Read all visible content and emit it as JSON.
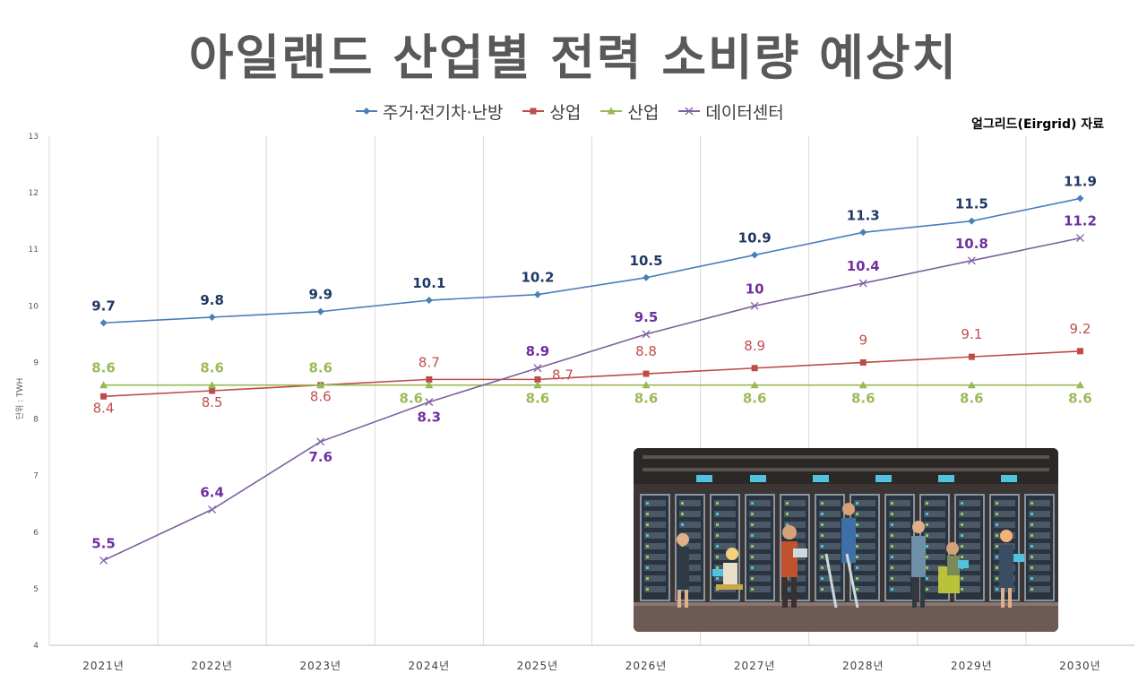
{
  "header": {
    "title": "아일랜드 산업별 전력 소비량 예상치",
    "source_note": "얼그리드(Eirgrid) 자료"
  },
  "chart_data": {
    "type": "line",
    "title": "아일랜드 산업별 전력 소비량 예상치",
    "ylabel": "단위 : TWH",
    "xlabel": "",
    "ylim": [
      4,
      13
    ],
    "y_ticks": [
      "4",
      "5",
      "6",
      "7",
      "8",
      "9",
      "10",
      "11",
      "12",
      "13"
    ],
    "categories": [
      "2021년",
      "2022년",
      "2023년",
      "2024년",
      "2025년",
      "2026년",
      "2027년",
      "2028년",
      "2029년",
      "2030년"
    ],
    "grid": "vertical",
    "legend_position": "top",
    "series": [
      {
        "name": "주거·전기차·난방",
        "color": "#4a7ebb",
        "label_color": "#1f3864",
        "marker": "diamond",
        "values": [
          9.7,
          9.8,
          9.9,
          10.1,
          10.2,
          10.5,
          10.9,
          11.3,
          11.5,
          11.9
        ],
        "labels": [
          "9.7",
          "9.8",
          "9.9",
          "10.1",
          "10.2",
          "10.5",
          "10.9",
          "11.3",
          "11.5",
          "11.9"
        ]
      },
      {
        "name": "상업",
        "color": "#be4b48",
        "label_color": "#c0504d",
        "marker": "square",
        "values": [
          8.4,
          8.5,
          8.6,
          8.7,
          8.7,
          8.8,
          8.9,
          9.0,
          9.1,
          9.2
        ],
        "labels": [
          "8.4",
          "8.5",
          "8.6",
          "8.7",
          "8.7",
          "8.8",
          "8.9",
          "9",
          "9.1",
          "9.2"
        ]
      },
      {
        "name": "산업",
        "color": "#98b954",
        "label_color": "#9bbb59",
        "marker": "triangle",
        "values": [
          8.6,
          8.6,
          8.6,
          8.6,
          8.6,
          8.6,
          8.6,
          8.6,
          8.6,
          8.6
        ],
        "labels": [
          "8.6",
          "8.6",
          "8.6",
          "8.6",
          "8.6",
          "8.6",
          "8.6",
          "8.6",
          "8.6",
          "8.6"
        ]
      },
      {
        "name": "데이터센터",
        "color": "#7d60a0",
        "label_color": "#7030a0",
        "marker": "x",
        "values": [
          5.5,
          6.4,
          7.6,
          8.3,
          8.9,
          9.5,
          10.0,
          10.4,
          10.8,
          11.2
        ],
        "labels": [
          "5.5",
          "6.4",
          "7.6",
          "8.3",
          "8.9",
          "9.5",
          "10",
          "10.4",
          "10.8",
          "11.2"
        ]
      }
    ]
  }
}
